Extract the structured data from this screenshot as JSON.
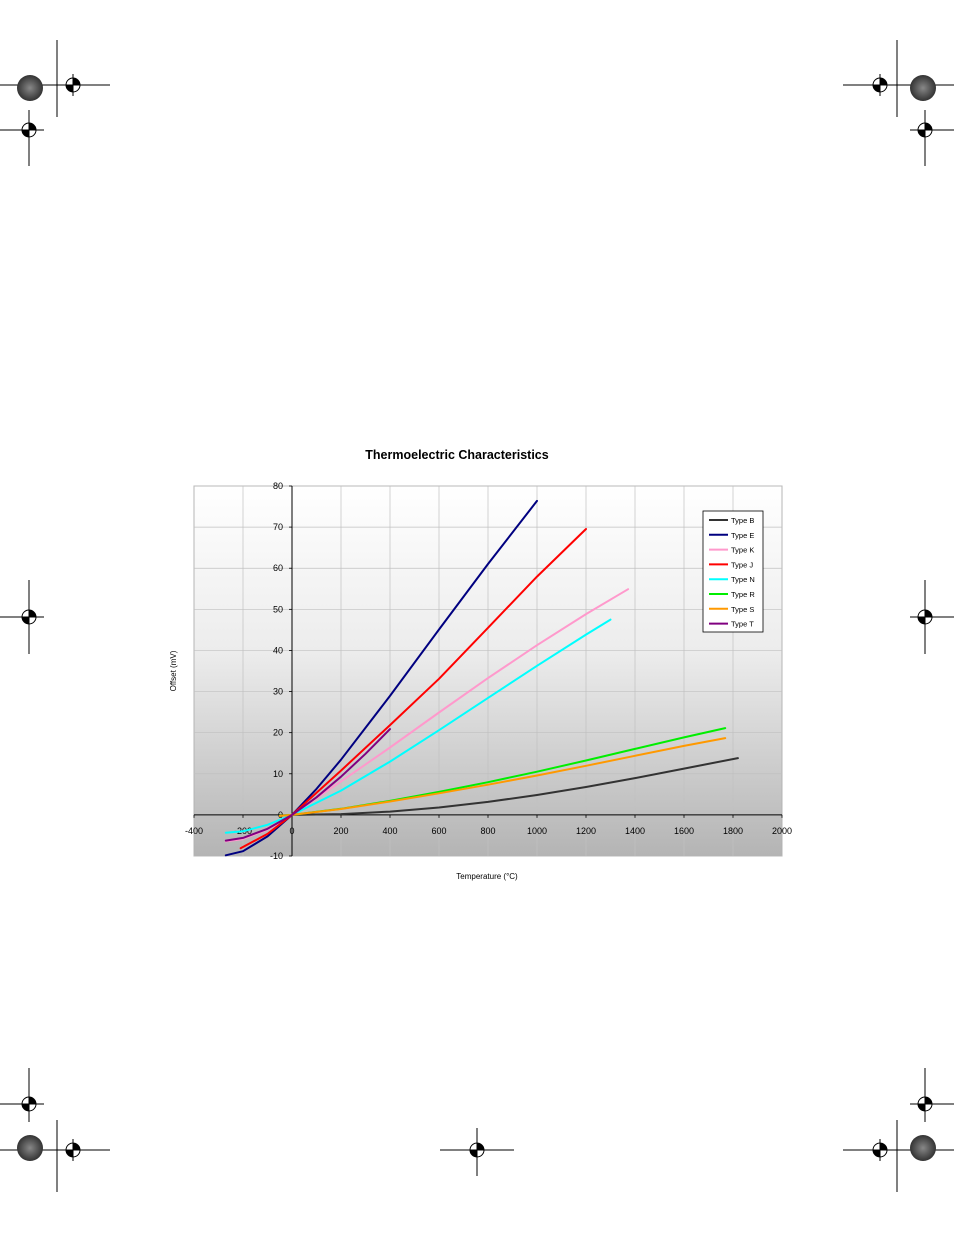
{
  "chart_data": {
    "type": "line",
    "title": "Thermoelectric Characteristics",
    "xlabel": "Temperature (°C)",
    "ylabel": "Offset (mV)",
    "xlim": [
      -400,
      2000
    ],
    "ylim": [
      -10,
      80
    ],
    "xticks": [
      -400,
      -200,
      0,
      200,
      400,
      600,
      800,
      1000,
      1200,
      1400,
      1600,
      1800,
      2000
    ],
    "yticks": [
      -10,
      0,
      10,
      20,
      30,
      40,
      50,
      60,
      70,
      80
    ],
    "grid": true,
    "legend_position": "top-right",
    "series": [
      {
        "name": "Type B",
        "color": "#333333",
        "x": [
          0,
          200,
          400,
          600,
          800,
          1000,
          1200,
          1400,
          1600,
          1820
        ],
        "y": [
          0,
          0.18,
          0.79,
          1.79,
          3.15,
          4.83,
          6.79,
          8.96,
          11.26,
          13.82
        ]
      },
      {
        "name": "Type E",
        "color": "#000080",
        "x": [
          -270,
          -200,
          -100,
          0,
          100,
          200,
          400,
          600,
          800,
          1000
        ],
        "y": [
          -9.84,
          -8.83,
          -5.24,
          0,
          6.32,
          13.42,
          28.95,
          45.09,
          61.02,
          76.37
        ]
      },
      {
        "name": "Type K",
        "color": "#FF99CC",
        "x": [
          -270,
          -200,
          -100,
          0,
          200,
          400,
          600,
          800,
          1000,
          1200,
          1372
        ],
        "y": [
          -6.46,
          -5.89,
          -3.55,
          0,
          8.14,
          16.4,
          24.9,
          33.28,
          41.28,
          48.84,
          54.89
        ]
      },
      {
        "name": "Type J",
        "color": "#FF0000",
        "x": [
          -210,
          -100,
          0,
          200,
          400,
          600,
          800,
          1000,
          1200
        ],
        "y": [
          -8.1,
          -4.63,
          0,
          10.78,
          21.85,
          33.1,
          45.5,
          57.95,
          69.55
        ]
      },
      {
        "name": "Type N",
        "color": "#00FFFF",
        "x": [
          -270,
          -200,
          -100,
          0,
          200,
          400,
          600,
          800,
          1000,
          1200,
          1300
        ],
        "y": [
          -4.35,
          -3.99,
          -2.41,
          0,
          5.91,
          12.97,
          20.61,
          28.46,
          36.26,
          43.85,
          47.51
        ]
      },
      {
        "name": "Type R",
        "color": "#00EE00",
        "x": [
          -50,
          0,
          200,
          400,
          600,
          800,
          1000,
          1200,
          1400,
          1600,
          1768
        ],
        "y": [
          -0.23,
          0,
          1.47,
          3.41,
          5.58,
          7.95,
          10.51,
          13.23,
          16.04,
          18.84,
          21.1
        ]
      },
      {
        "name": "Type S",
        "color": "#FF9900",
        "x": [
          -50,
          0,
          200,
          400,
          600,
          800,
          1000,
          1200,
          1400,
          1600,
          1768
        ],
        "y": [
          -0.24,
          0,
          1.44,
          3.26,
          5.24,
          7.35,
          9.59,
          11.95,
          14.37,
          16.77,
          18.69
        ]
      },
      {
        "name": "Type T",
        "color": "#800080",
        "x": [
          -270,
          -200,
          -100,
          0,
          100,
          200,
          300,
          400
        ],
        "y": [
          -6.26,
          -5.6,
          -3.38,
          0,
          4.28,
          9.29,
          14.86,
          20.87
        ]
      }
    ]
  }
}
